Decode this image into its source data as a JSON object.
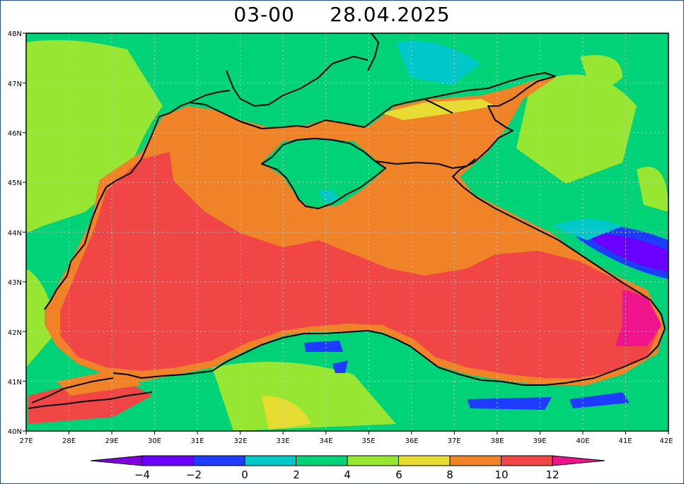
{
  "title": {
    "hour": "03-00",
    "date": "28.04.2025"
  },
  "map": {
    "region": "Black Sea",
    "lon_range": [
      27,
      42
    ],
    "lat_range": [
      40,
      48
    ],
    "grid": "dotted",
    "lon_labels": [
      "27E",
      "28E",
      "29E",
      "30E",
      "31E",
      "32E",
      "33E",
      "34E",
      "35E",
      "36E",
      "37E",
      "38E",
      "39E",
      "40E",
      "41E",
      "42E"
    ],
    "lat_labels": [
      "40N",
      "41N",
      "42N",
      "43N",
      "44N",
      "45N",
      "46N",
      "47N",
      "48N"
    ]
  },
  "colorbar": {
    "labels": [
      "−4",
      "−2",
      "0",
      "2",
      "4",
      "6",
      "8",
      "10",
      "12"
    ],
    "levels": [
      -4,
      -2,
      0,
      2,
      4,
      6,
      8,
      10,
      12
    ],
    "colors": [
      "#8000e0",
      "#6a00ff",
      "#1e3cff",
      "#00c8c8",
      "#00d278",
      "#96e632",
      "#e6dc32",
      "#f08228",
      "#f04646",
      "#f0148c"
    ]
  }
}
